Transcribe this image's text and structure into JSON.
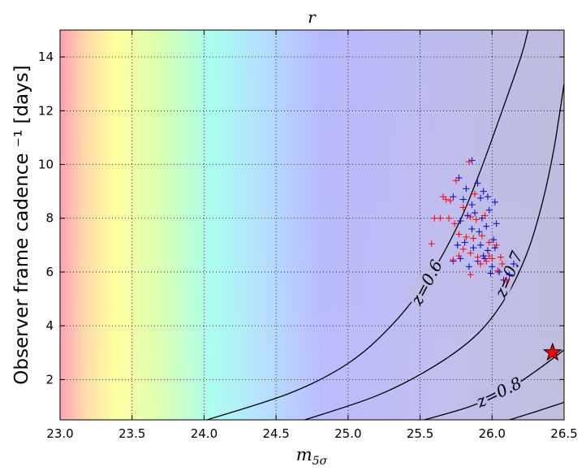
{
  "chart_data": {
    "type": "scatter",
    "title": "r",
    "xlabel": "m_{5σ}",
    "xlabel_main": "m",
    "xlabel_sub": "5σ",
    "ylabel": "Observer frame cadence ⁻¹ [days]",
    "xlim": [
      23.0,
      26.5
    ],
    "ylim": [
      0.5,
      15.0
    ],
    "x_ticks": [
      23.0,
      23.5,
      24.0,
      24.5,
      25.0,
      25.5,
      26.0,
      26.5
    ],
    "x_tick_labels": [
      "23.0",
      "23.5",
      "24.0",
      "24.5",
      "25.0",
      "25.5",
      "26.0",
      "26.5"
    ],
    "y_ticks": [
      2,
      4,
      6,
      8,
      10,
      12,
      14
    ],
    "y_tick_labels": [
      "2",
      "4",
      "6",
      "8",
      "10",
      "12",
      "14"
    ],
    "grid": true,
    "background": "redshift color map: red/yellow at low m5σ through cyan to lavender/blue at high m5σ",
    "contours": [
      {
        "label": "z=0.6",
        "points": [
          [
            24.02,
            0.5
          ],
          [
            24.6,
            1.5
          ],
          [
            25.0,
            2.6
          ],
          [
            25.3,
            4.0
          ],
          [
            25.55,
            5.7
          ],
          [
            25.75,
            7.6
          ],
          [
            25.9,
            9.5
          ],
          [
            26.05,
            11.7
          ],
          [
            26.2,
            14.0
          ],
          [
            26.25,
            15.0
          ]
        ]
      },
      {
        "label": "z=0.7",
        "points": [
          [
            24.7,
            0.5
          ],
          [
            25.2,
            1.4
          ],
          [
            25.6,
            2.5
          ],
          [
            25.9,
            3.7
          ],
          [
            26.1,
            5.1
          ],
          [
            26.25,
            6.8
          ],
          [
            26.35,
            8.6
          ],
          [
            26.43,
            10.6
          ],
          [
            26.5,
            13.0
          ]
        ]
      },
      {
        "label": "z=0.8",
        "points": [
          [
            25.53,
            0.5
          ],
          [
            25.85,
            1.0
          ],
          [
            26.1,
            1.6
          ],
          [
            26.3,
            2.3
          ],
          [
            26.5,
            3.1
          ]
        ]
      },
      {
        "label": "",
        "points": [
          [
            26.12,
            0.5
          ],
          [
            26.3,
            0.8
          ],
          [
            26.5,
            1.15
          ]
        ]
      }
    ],
    "series": [
      {
        "color": "#0000cc",
        "marker": "+",
        "points": [
          [
            25.73,
            8.8
          ],
          [
            25.77,
            9.5
          ],
          [
            25.82,
            9.1
          ],
          [
            25.86,
            10.15
          ],
          [
            25.9,
            9.3
          ],
          [
            25.94,
            9.0
          ],
          [
            25.8,
            8.7
          ],
          [
            25.86,
            8.5
          ],
          [
            25.92,
            8.75
          ],
          [
            25.97,
            8.8
          ],
          [
            26.02,
            8.6
          ],
          [
            25.78,
            7.9
          ],
          [
            25.83,
            8.1
          ],
          [
            25.88,
            8.2
          ],
          [
            25.93,
            8.0
          ],
          [
            25.98,
            8.3
          ],
          [
            26.03,
            7.8
          ],
          [
            25.86,
            7.6
          ],
          [
            25.91,
            7.5
          ],
          [
            25.96,
            7.7
          ],
          [
            26.01,
            7.2
          ],
          [
            25.76,
            7.0
          ],
          [
            25.81,
            7.1
          ],
          [
            25.87,
            6.9
          ],
          [
            25.92,
            7.0
          ],
          [
            25.97,
            6.8
          ],
          [
            26.02,
            6.9
          ],
          [
            25.9,
            6.4
          ],
          [
            25.95,
            6.5
          ],
          [
            26.0,
            6.2
          ],
          [
            26.05,
            6.0
          ],
          [
            26.08,
            5.7
          ],
          [
            26.12,
            5.9
          ],
          [
            26.15,
            6.3
          ],
          [
            25.73,
            6.4
          ],
          [
            25.78,
            6.5
          ],
          [
            25.84,
            6.2
          ],
          [
            25.99,
            5.95
          ],
          [
            25.94,
            6.6
          ]
        ]
      },
      {
        "color": "#ff0000",
        "marker": "+",
        "points": [
          [
            25.6,
            8.0
          ],
          [
            25.66,
            8.8
          ],
          [
            25.71,
            8.65
          ],
          [
            25.75,
            9.4
          ],
          [
            25.84,
            10.1
          ],
          [
            25.88,
            8.9
          ],
          [
            25.7,
            8.0
          ],
          [
            25.74,
            7.8
          ],
          [
            25.8,
            8.4
          ],
          [
            25.85,
            8.05
          ],
          [
            25.89,
            7.95
          ],
          [
            25.95,
            8.1
          ],
          [
            25.64,
            8.0
          ],
          [
            25.77,
            7.4
          ],
          [
            25.82,
            7.3
          ],
          [
            25.87,
            7.25
          ],
          [
            25.93,
            7.35
          ],
          [
            25.98,
            7.1
          ],
          [
            26.03,
            7.0
          ],
          [
            25.58,
            7.05
          ],
          [
            25.8,
            6.85
          ],
          [
            25.85,
            6.7
          ],
          [
            25.9,
            6.55
          ],
          [
            25.96,
            6.4
          ],
          [
            26.0,
            6.5
          ],
          [
            26.04,
            6.05
          ],
          [
            26.07,
            6.3
          ],
          [
            26.1,
            5.7
          ],
          [
            25.73,
            6.45
          ],
          [
            25.77,
            6.6
          ],
          [
            25.85,
            5.9
          ],
          [
            25.98,
            6.6
          ],
          [
            25.92,
            6.3
          ],
          [
            26.06,
            6.55
          ],
          [
            25.68,
            8.7
          ]
        ]
      },
      {
        "color": "#ff0000",
        "marker": "star",
        "points": [
          [
            26.42,
            3.0
          ]
        ]
      }
    ]
  }
}
